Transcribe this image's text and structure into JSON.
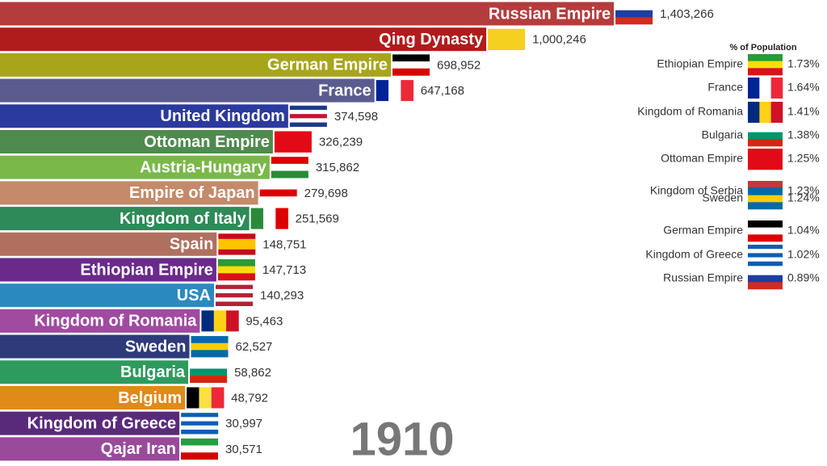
{
  "chart_data": [
    {
      "type": "bar",
      "orientation": "horizontal",
      "annotation": "1910",
      "categories": [
        "Russian Empire",
        "Qing Dynasty",
        "German Empire",
        "France",
        "United Kingdom",
        "Ottoman Empire",
        "Austria-Hungary",
        "Empire of Japan",
        "Kingdom of Italy",
        "Spain",
        "Ethiopian Empire",
        "USA",
        "Kingdom of Romania",
        "Sweden",
        "Bulgaria",
        "Belgium",
        "Kingdom of Greece",
        "Qajar Iran"
      ],
      "values": [
        1403266,
        1000246,
        698952,
        647168,
        374598,
        326239,
        315862,
        279698,
        251569,
        148751,
        147713,
        140293,
        95463,
        62527,
        58862,
        48792,
        30997,
        30571
      ],
      "value_labels": [
        "1,403,266",
        "1,000,246",
        "698,952",
        "647,168",
        "374,598",
        "326,239",
        "315,862",
        "279,698",
        "251,569",
        "148,751",
        "147,713",
        "140,293",
        "95,463",
        "62,527",
        "58,862",
        "48,792",
        "30,997",
        "30,571"
      ],
      "colors": [
        "#b53c3c",
        "#b01c1c",
        "#a8a51a",
        "#5b5b8f",
        "#2b3a9e",
        "#4f8a4f",
        "#7ab84a",
        "#c48a6a",
        "#2e8a58",
        "#b07060",
        "#6a2a8a",
        "#2a8ac0",
        "#a04aa0",
        "#2e3a7a",
        "#2e9a5e",
        "#e08a1a",
        "#5a2a7a",
        "#9a4a9a"
      ]
    },
    {
      "type": "list",
      "title": "% of Population",
      "categories": [
        "Ethiopian Empire",
        "France",
        "Kingdom of Romania",
        "Bulgaria",
        "Ottoman Empire",
        "Kingdom of Serbia",
        "Sweden",
        "German Empire",
        "Kingdom of Greece",
        "Russian Empire"
      ],
      "values": [
        1.73,
        1.64,
        1.41,
        1.38,
        1.25,
        1.23,
        1.24,
        1.04,
        1.02,
        0.89
      ],
      "value_labels": [
        "1.73%",
        "1.64%",
        "1.41%",
        "1.38%",
        "1.25%",
        "1.23%",
        "1.24%",
        "1.04%",
        "1.02%",
        "0.89%"
      ]
    }
  ]
}
